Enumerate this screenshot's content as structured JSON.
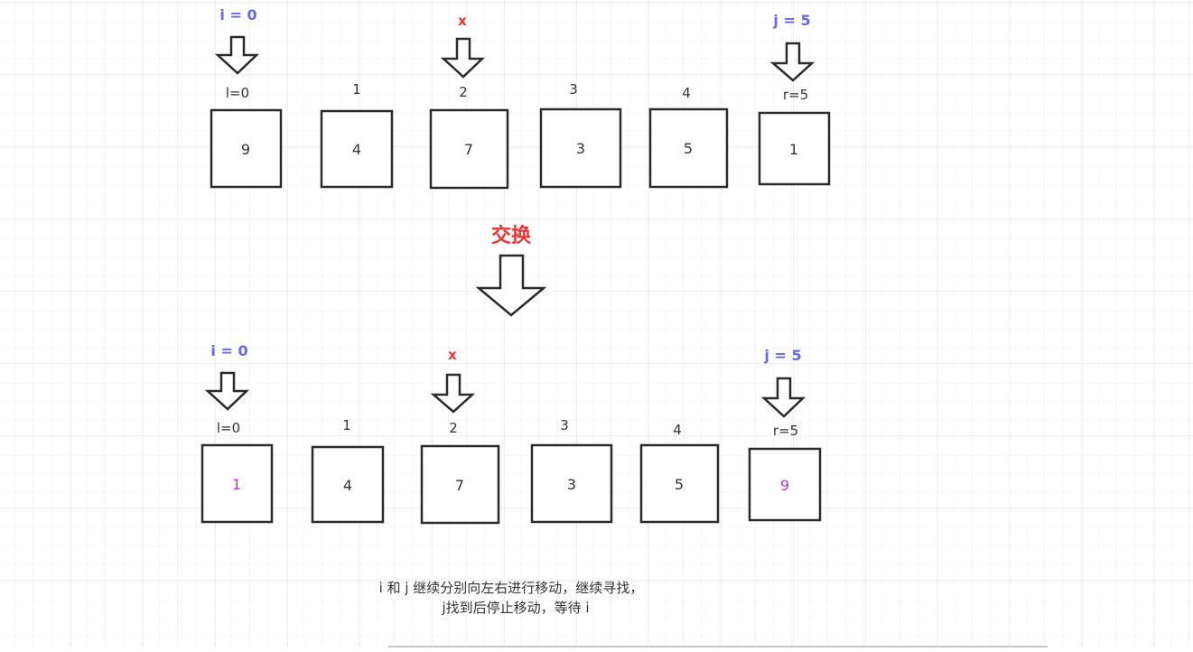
{
  "top_row": {
    "pointer_i": "i = 0",
    "pointer_x": "x",
    "pointer_j": "j = 5",
    "index_labels": [
      "l=0",
      "1",
      "2",
      "3",
      "4",
      "r=5"
    ],
    "values": [
      "9",
      "4",
      "7",
      "3",
      "5",
      "1"
    ]
  },
  "swap": {
    "label": "交换"
  },
  "bottom_row": {
    "pointer_i": "i = 0",
    "pointer_x": "x",
    "pointer_j": "j = 5",
    "index_labels": [
      "l=0",
      "1",
      "2",
      "3",
      "4",
      "r=5"
    ],
    "values": [
      "1",
      "4",
      "7",
      "3",
      "5",
      "9"
    ]
  },
  "caption": {
    "line1": "i 和 j 继续分别向左右进行移动，继续寻找，",
    "line2": "j找到后停止移动，等待 i"
  },
  "colors": {
    "pointer_blue": "#6666ee",
    "accent_red": "#ee3333",
    "swapped_value": "#cc33cc",
    "stroke": "#2b2b2b",
    "grid_minor": "#f0f0f0",
    "grid_major": "#e2e2e2"
  }
}
